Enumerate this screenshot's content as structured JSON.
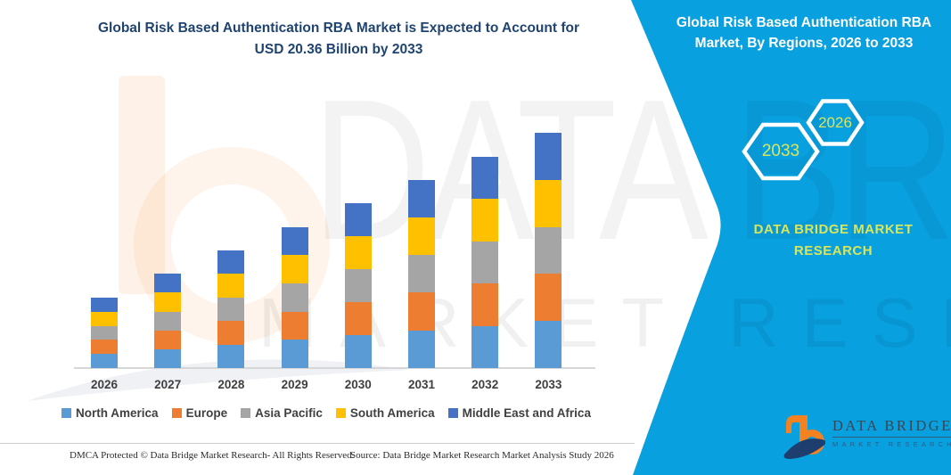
{
  "header": {
    "title_line1": "Global Risk Based Authentication RBA Market is Expected to Account for",
    "title_line2": "USD 20.36 Billion by 2033"
  },
  "panel": {
    "bg_color": "#09A0E0",
    "title_line1": "Global Risk Based Authentication RBA",
    "title_line2": "Market, By Regions, 2026 to 2033",
    "badges": [
      {
        "year": "2033"
      },
      {
        "year": "2026"
      }
    ],
    "brand_line1": "DATA BRIDGE MARKET",
    "brand_line2": "RESEARCH",
    "accent_text_color": "#D9E65A"
  },
  "logo": {
    "name_text": "DATA BRIDGE",
    "sub_text": "MARKET RESEARCH"
  },
  "watermark": {
    "big_text": "DATA BRIDGE",
    "row_text": "MARKET RESEARCH"
  },
  "footer": {
    "left_text": "DMCA Protected © Data Bridge Market Research-  All Rights Reserved.",
    "source_text": "Source: Data Bridge Market Research  Market Analysis Study 2026"
  },
  "chart_data": {
    "type": "bar",
    "subtype": "stacked",
    "unit": "USD Billion",
    "categories": [
      "2026",
      "2027",
      "2028",
      "2029",
      "2030",
      "2031",
      "2032",
      "2033"
    ],
    "series": [
      {
        "name": "North America",
        "color": "#5B9BD5",
        "values": [
          1.22,
          1.63,
          2.04,
          2.44,
          2.85,
          3.26,
          3.66,
          4.07
        ]
      },
      {
        "name": "Europe",
        "color": "#ED7D31",
        "values": [
          1.22,
          1.63,
          2.04,
          2.44,
          2.85,
          3.26,
          3.66,
          4.07
        ]
      },
      {
        "name": "Asia Pacific",
        "color": "#A5A5A5",
        "values": [
          1.22,
          1.63,
          2.04,
          2.44,
          2.85,
          3.26,
          3.66,
          4.07
        ]
      },
      {
        "name": "South America",
        "color": "#FFC000",
        "values": [
          1.22,
          1.63,
          2.04,
          2.44,
          2.85,
          3.26,
          3.66,
          4.07
        ]
      },
      {
        "name": "Middle East and Africa",
        "color": "#4472C4",
        "values": [
          1.22,
          1.63,
          2.04,
          2.44,
          2.85,
          3.26,
          3.66,
          4.07
        ]
      }
    ],
    "totals": [
      6.1,
      8.15,
      10.2,
      12.2,
      14.25,
      16.3,
      18.3,
      20.36
    ],
    "title": "Global Risk Based Authentication RBA Market is Expected to Account for USD 20.36 Billion by 2033",
    "xlabel": "",
    "ylabel": "",
    "ylim": [
      0,
      21
    ],
    "grid": false,
    "y_axis_visible": false,
    "legend_position": "bottom"
  }
}
